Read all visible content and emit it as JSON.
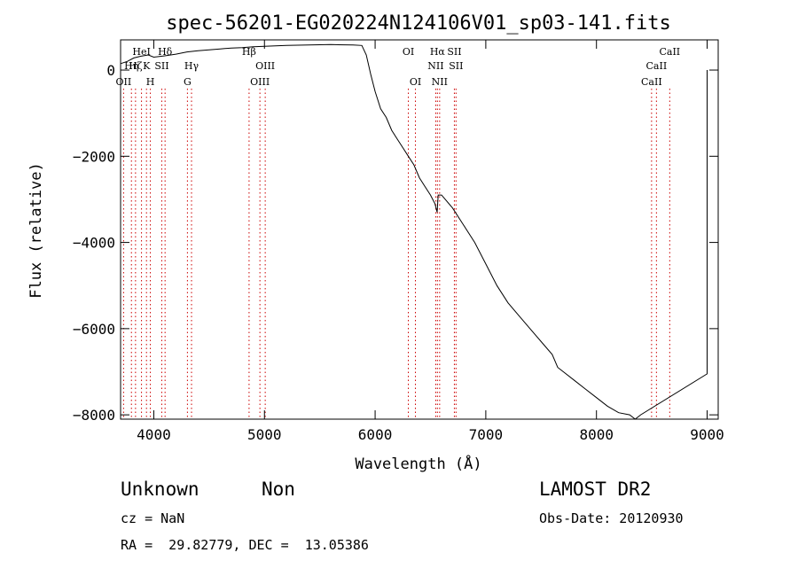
{
  "chart_data": {
    "type": "line",
    "title": "spec-56201-EG020224N124106V01_sp03-141.fits",
    "xlabel": "Wavelength (Å)",
    "ylabel": "Flux (relative)",
    "xlim": [
      3700,
      9100
    ],
    "ylim": [
      -8100,
      700
    ],
    "xticks": [
      4000,
      5000,
      6000,
      7000,
      8000,
      9000
    ],
    "yticks": [
      0,
      -2000,
      -4000,
      -6000,
      -8000
    ],
    "series": [
      {
        "color": "#000000",
        "x": [
          3700,
          3760,
          3820,
          3880,
          3950,
          4000,
          4100,
          4200,
          4300,
          4400,
          4500,
          4600,
          4700,
          4800,
          4900,
          5000,
          5200,
          5400,
          5600,
          5800,
          5880,
          5920,
          5960,
          6000,
          6050,
          6100,
          6150,
          6200,
          6250,
          6300,
          6350,
          6400,
          6450,
          6500,
          6540,
          6560,
          6570,
          6600,
          6700,
          6800,
          6900,
          7000,
          7100,
          7200,
          7300,
          7400,
          7500,
          7600,
          7650,
          7700,
          7800,
          7900,
          8000,
          8100,
          8200,
          8300,
          8350,
          8400,
          9000,
          9000
        ],
        "y": [
          150,
          200,
          280,
          320,
          350,
          300,
          330,
          370,
          420,
          450,
          470,
          490,
          510,
          520,
          540,
          550,
          570,
          580,
          590,
          580,
          570,
          350,
          -100,
          -500,
          -900,
          -1100,
          -1400,
          -1600,
          -1800,
          -2000,
          -2200,
          -2500,
          -2700,
          -2900,
          -3100,
          -3300,
          -2900,
          -2900,
          -3200,
          -3600,
          -4000,
          -4500,
          -5000,
          -5400,
          -5700,
          -6000,
          -6300,
          -6600,
          -6900,
          -7000,
          -7200,
          -7400,
          -7600,
          -7800,
          -7950,
          -8000,
          -8100,
          -8000,
          -7050,
          0
        ]
      }
    ],
    "lines": [
      {
        "wavelength": 3727,
        "labels": [
          "OII"
        ],
        "row": 3
      },
      {
        "wavelength": 3798,
        "labels": [
          "Hη"
        ],
        "row": 2
      },
      {
        "wavelength": 3835,
        "labels": [
          "Hζ"
        ],
        "row": 2
      },
      {
        "wavelength": 3889,
        "labels": [
          "HeI"
        ],
        "row": 1
      },
      {
        "wavelength": 3934,
        "labels": [
          "K"
        ],
        "row": 2
      },
      {
        "wavelength": 3969,
        "labels": [
          "H"
        ],
        "row": 3
      },
      {
        "wavelength": 4072,
        "labels": [
          "SII"
        ],
        "row": 2
      },
      {
        "wavelength": 4102,
        "labels": [
          "Hδ"
        ],
        "row": 1
      },
      {
        "wavelength": 4304,
        "labels": [
          "G"
        ],
        "row": 3
      },
      {
        "wavelength": 4341,
        "labels": [
          "Hγ"
        ],
        "row": 2
      },
      {
        "wavelength": 4861,
        "labels": [
          "Hβ"
        ],
        "row": 1
      },
      {
        "wavelength": 4959,
        "labels": [
          "OIII"
        ],
        "row": 3
      },
      {
        "wavelength": 5007,
        "labels": [
          "OIII"
        ],
        "row": 2
      },
      {
        "wavelength": 6300,
        "labels": [
          "OI"
        ],
        "row": 1
      },
      {
        "wavelength": 6364,
        "labels": [
          "OI"
        ],
        "row": 3
      },
      {
        "wavelength": 6548,
        "labels": [
          "NII"
        ],
        "row": 2
      },
      {
        "wavelength": 6563,
        "labels": [
          "Hα"
        ],
        "row": 1
      },
      {
        "wavelength": 6583,
        "labels": [
          "NII"
        ],
        "row": 3
      },
      {
        "wavelength": 6716,
        "labels": [
          "SII"
        ],
        "row": 1
      },
      {
        "wavelength": 6731,
        "labels": [
          "SII"
        ],
        "row": 2
      },
      {
        "wavelength": 8498,
        "labels": [
          "CaII"
        ],
        "row": 3
      },
      {
        "wavelength": 8542,
        "labels": [
          "CaII"
        ],
        "row": 2
      },
      {
        "wavelength": 8662,
        "labels": [
          "CaII"
        ],
        "row": 1
      }
    ],
    "line_color": "#cc0000",
    "grid": false
  },
  "info": {
    "class": "Unknown",
    "subclass": "Non",
    "survey": "LAMOST DR2",
    "cz": "cz = NaN",
    "obsdate": "Obs-Date: 20120930",
    "radec": "RA =  29.82779, DEC =  13.05386"
  }
}
